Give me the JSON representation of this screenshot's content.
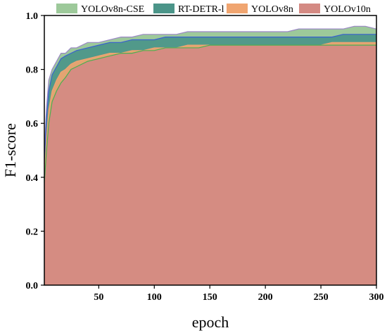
{
  "chart_data": {
    "type": "area",
    "xlabel": "epoch",
    "ylabel": "F1-score",
    "xlim": [
      1,
      300
    ],
    "ylim": [
      0.0,
      1.0
    ],
    "xticks": [
      50,
      100,
      150,
      200,
      250,
      300
    ],
    "yticks": [
      0.0,
      0.2,
      0.4,
      0.6,
      0.8,
      1.0
    ],
    "xtick_labels": [
      "50",
      "100",
      "150",
      "200",
      "250",
      "300"
    ],
    "ytick_labels": [
      "0.0",
      "0.2",
      "0.4",
      "0.6",
      "0.8",
      "1.0"
    ],
    "grid": false,
    "legend_position": "top",
    "x": [
      1,
      3,
      5,
      8,
      12,
      16,
      20,
      25,
      30,
      40,
      50,
      60,
      70,
      80,
      90,
      100,
      110,
      120,
      130,
      140,
      150,
      160,
      170,
      180,
      190,
      200,
      210,
      220,
      230,
      240,
      250,
      260,
      270,
      280,
      290,
      300
    ],
    "series": [
      {
        "name": "YOLOv8n-CSE",
        "color": "#9dc99a",
        "edge_color": "#9b88c6",
        "values": [
          0.5,
          0.66,
          0.76,
          0.8,
          0.83,
          0.86,
          0.86,
          0.88,
          0.88,
          0.9,
          0.9,
          0.91,
          0.92,
          0.92,
          0.93,
          0.93,
          0.93,
          0.93,
          0.94,
          0.94,
          0.94,
          0.94,
          0.94,
          0.94,
          0.94,
          0.94,
          0.94,
          0.94,
          0.95,
          0.95,
          0.95,
          0.95,
          0.95,
          0.96,
          0.96,
          0.95
        ]
      },
      {
        "name": "RT-DETR-l",
        "color": "#4b9589",
        "edge_color": "#3a5fd0",
        "values": [
          0.45,
          0.62,
          0.72,
          0.78,
          0.81,
          0.84,
          0.85,
          0.86,
          0.87,
          0.88,
          0.89,
          0.9,
          0.9,
          0.91,
          0.91,
          0.91,
          0.92,
          0.92,
          0.92,
          0.92,
          0.92,
          0.92,
          0.92,
          0.92,
          0.92,
          0.92,
          0.92,
          0.92,
          0.92,
          0.92,
          0.92,
          0.92,
          0.93,
          0.93,
          0.93,
          0.93
        ]
      },
      {
        "name": "YOLOv8n",
        "color": "#f0a570",
        "edge_color": "#f0a570",
        "values": [
          0.4,
          0.55,
          0.65,
          0.72,
          0.76,
          0.79,
          0.8,
          0.82,
          0.83,
          0.84,
          0.85,
          0.86,
          0.86,
          0.87,
          0.87,
          0.88,
          0.88,
          0.88,
          0.89,
          0.89,
          0.89,
          0.89,
          0.89,
          0.89,
          0.89,
          0.89,
          0.89,
          0.89,
          0.89,
          0.89,
          0.89,
          0.9,
          0.9,
          0.9,
          0.9,
          0.9
        ]
      },
      {
        "name": "YOLOv10n",
        "color": "#d48a83",
        "edge_color": "#4caf50",
        "values": [
          0.38,
          0.5,
          0.6,
          0.68,
          0.72,
          0.75,
          0.77,
          0.8,
          0.81,
          0.83,
          0.84,
          0.85,
          0.86,
          0.86,
          0.87,
          0.87,
          0.88,
          0.88,
          0.88,
          0.88,
          0.89,
          0.89,
          0.89,
          0.89,
          0.89,
          0.89,
          0.89,
          0.89,
          0.89,
          0.89,
          0.89,
          0.89,
          0.89,
          0.89,
          0.89,
          0.89
        ]
      }
    ]
  }
}
